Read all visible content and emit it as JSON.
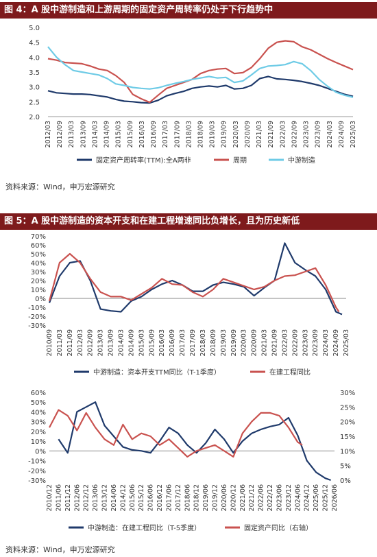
{
  "figure4": {
    "title": "图 4：A 股中游制造和上游周期的固定资产周转率仍处于下行趋势中",
    "source": "资料来源：Wind，申万宏源研究",
    "chart_data": {
      "type": "line",
      "ylim": [
        2.0,
        5.0
      ],
      "yticks": [
        "2.0",
        "2.5",
        "3.0",
        "3.5",
        "4.0",
        "4.5",
        "5.0"
      ],
      "xticks": [
        "2012/03",
        "2012/09",
        "2013/03",
        "2013/09",
        "2014/03",
        "2014/09",
        "2015/03",
        "2015/09",
        "2016/03",
        "2016/09",
        "2017/03",
        "2017/09",
        "2018/03",
        "2018/09",
        "2019/03",
        "2019/09",
        "2020/03",
        "2020/09",
        "2021/03",
        "2021/09",
        "2022/03",
        "2022/09",
        "2023/03",
        "2023/09",
        "2024/03",
        "2024/09",
        "2025/03"
      ],
      "series": [
        {
          "name": "固定资产周转率(TTM):全A两非",
          "color": "#1f3a6b",
          "values": [
            2.87,
            2.8,
            2.78,
            2.76,
            2.76,
            2.74,
            2.7,
            2.66,
            2.58,
            2.52,
            2.5,
            2.47,
            2.46,
            2.55,
            2.7,
            2.78,
            2.85,
            2.95,
            3.0,
            3.03,
            3.0,
            3.05,
            2.93,
            2.95,
            3.05,
            3.28,
            3.35,
            3.27,
            3.25,
            3.22,
            3.18,
            3.12,
            3.05,
            2.95,
            2.85,
            2.75,
            2.68
          ]
        },
        {
          "name": "周期",
          "color": "#c9524f",
          "values": [
            3.95,
            3.9,
            3.82,
            3.8,
            3.78,
            3.7,
            3.6,
            3.55,
            3.38,
            3.15,
            2.75,
            2.6,
            2.48,
            2.72,
            2.95,
            3.05,
            3.15,
            3.25,
            3.45,
            3.55,
            3.6,
            3.62,
            3.45,
            3.48,
            3.65,
            3.95,
            4.3,
            4.5,
            4.55,
            4.52,
            4.35,
            4.25,
            4.1,
            3.95,
            3.82,
            3.7,
            3.58
          ]
        },
        {
          "name": "中游制造",
          "color": "#6ecbe6",
          "values": [
            4.35,
            4.0,
            3.75,
            3.55,
            3.5,
            3.45,
            3.4,
            3.28,
            3.1,
            3.05,
            2.98,
            2.95,
            2.93,
            2.97,
            3.05,
            3.12,
            3.18,
            3.25,
            3.3,
            3.35,
            3.3,
            3.32,
            3.15,
            3.2,
            3.4,
            3.62,
            3.7,
            3.72,
            3.75,
            3.85,
            3.78,
            3.55,
            3.25,
            3.02,
            2.82,
            2.72,
            2.65
          ]
        }
      ]
    }
  },
  "figure5": {
    "title": "图 5：A 股中游制造的资本开支和在建工程增速同比负增长，且为历史新低",
    "source": "资料来源：Wind，申万宏源研究",
    "top_chart": {
      "type": "line",
      "ylim": [
        -30,
        70
      ],
      "yticks": [
        "-30%",
        "-20%",
        "-10%",
        "0%",
        "10%",
        "20%",
        "30%",
        "40%",
        "50%",
        "60%",
        "70%"
      ],
      "xticks": [
        "2010/09",
        "2011/03",
        "2011/09",
        "2012/03",
        "2012/09",
        "2013/03",
        "2013/09",
        "2014/03",
        "2014/09",
        "2015/03",
        "2015/09",
        "2016/03",
        "2016/09",
        "2017/03",
        "2017/09",
        "2018/03",
        "2018/09",
        "2019/03",
        "2019/09",
        "2020/03",
        "2020/09",
        "2021/03",
        "2021/09",
        "2022/03",
        "2022/09",
        "2023/03",
        "2023/09",
        "2024/03",
        "2024/09",
        "2025/03"
      ],
      "series": [
        {
          "name": "中游制造：资本开支TTM同比（T-1季度）",
          "color": "#1f3a6b",
          "x": [
            0,
            1,
            2,
            3,
            4,
            5,
            6,
            7,
            8,
            9,
            10,
            11,
            12,
            13,
            14,
            15,
            16,
            17,
            18,
            19,
            20,
            21,
            22,
            23,
            24,
            25,
            26,
            27,
            28,
            28.6
          ],
          "values": [
            -5,
            25,
            40,
            42,
            20,
            -12,
            -14,
            -15,
            -3,
            2,
            10,
            16,
            20,
            15,
            8,
            8,
            15,
            18,
            16,
            13,
            3,
            12,
            20,
            62,
            40,
            32,
            25,
            10,
            -15,
            -18
          ]
        },
        {
          "name": "在建工程同比",
          "color": "#c9524f",
          "x": [
            0,
            1,
            2,
            3,
            4,
            5,
            6,
            7,
            8,
            9,
            10,
            11,
            12,
            13,
            14,
            15,
            16,
            17,
            18,
            19,
            20,
            21,
            22,
            23,
            24,
            25,
            26,
            27,
            28,
            28.3
          ],
          "values": [
            -3,
            40,
            50,
            40,
            22,
            7,
            2,
            2,
            -2,
            5,
            12,
            22,
            16,
            15,
            7,
            2,
            10,
            22,
            18,
            14,
            10,
            13,
            20,
            25,
            26,
            30,
            34,
            15,
            -10,
            -15
          ]
        }
      ]
    },
    "bottom_chart": {
      "type": "line",
      "ylim_left": [
        -30,
        60
      ],
      "ylim_right": [
        0,
        30
      ],
      "yticks_left": [
        "-30%",
        "-20%",
        "-10%",
        "0%",
        "10%",
        "20%",
        "30%",
        "40%",
        "50%",
        "60%"
      ],
      "yticks_right": [
        "0%",
        "5%",
        "10%",
        "15%",
        "20%",
        "25%",
        "30%"
      ],
      "xticks": [
        "2010/12",
        "2011/06",
        "2011/12",
        "2012/06",
        "2012/12",
        "2013/06",
        "2013/12",
        "2014/06",
        "2014/12",
        "2015/06",
        "2015/12",
        "2016/06",
        "2016/12",
        "2017/06",
        "2017/12",
        "2018/06",
        "2018/12",
        "2019/06",
        "2019/12",
        "2020/06",
        "2020/12",
        "2021/06",
        "2021/12",
        "2022/06",
        "2022/12",
        "2023/06",
        "2023/12",
        "2024/06",
        "2024/12",
        "2025/06",
        "2025/12",
        "2026/06"
      ],
      "series": [
        {
          "name": "中游制造：在建工程同比（T-5季度）",
          "color": "#1f3a6b",
          "axis": "left",
          "x": [
            1,
            2,
            3,
            4,
            5,
            6,
            7,
            8,
            9,
            10,
            11,
            12,
            13,
            14,
            15,
            16,
            17,
            18,
            19,
            20,
            21,
            22,
            23,
            24,
            25,
            26,
            27,
            28,
            29,
            30,
            30.6
          ],
          "values": [
            12,
            -2,
            40,
            45,
            50,
            26,
            15,
            4,
            1,
            0,
            -2,
            10,
            24,
            18,
            6,
            -2,
            8,
            22,
            12,
            -2,
            10,
            18,
            22,
            25,
            27,
            34,
            16,
            -10,
            -22,
            -28,
            -30
          ]
        },
        {
          "name": "固定资产同比（右轴）",
          "color": "#c9524f",
          "axis": "right",
          "x": [
            0,
            1,
            2,
            3,
            4,
            5,
            6,
            7,
            8,
            9,
            10,
            11,
            12,
            13,
            14,
            15,
            16,
            17,
            18,
            19,
            20,
            21,
            22,
            23,
            24,
            25,
            26,
            27,
            27.5
          ],
          "values": [
            18,
            24,
            22,
            17,
            23,
            18,
            14,
            12,
            19,
            14,
            16,
            15,
            12,
            14,
            11,
            8,
            10,
            11,
            12,
            10,
            8,
            16,
            20,
            23,
            23,
            22,
            18,
            13,
            12
          ]
        }
      ]
    },
    "source2": "资料来源：Wind，申万宏源研究"
  }
}
